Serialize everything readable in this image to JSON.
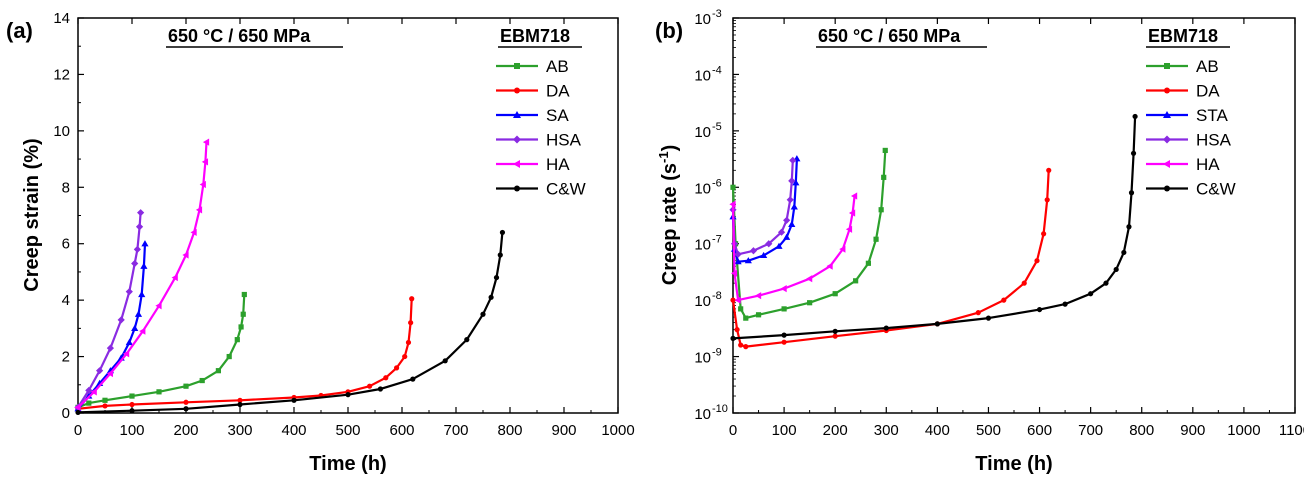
{
  "chart_data": [
    {
      "type": "line",
      "panel_label": "(a)",
      "condition": "650 °C / 650 MPa",
      "legend_title": "EBM718",
      "xlabel": "Time (h)",
      "ylabel": "Creep strain (%)",
      "xlim": [
        0,
        1000
      ],
      "ylim": [
        0,
        14
      ],
      "yscale": "linear",
      "xticks": [
        "0",
        "100",
        "200",
        "300",
        "400",
        "500",
        "600",
        "700",
        "800",
        "900",
        "1000"
      ],
      "yticks": [
        "0",
        "2",
        "4",
        "6",
        "8",
        "10",
        "12",
        "14"
      ],
      "series": [
        {
          "name": "AB",
          "color": "#2ca02c",
          "marker": "square",
          "x": [
            0,
            20,
            50,
            100,
            150,
            200,
            230,
            260,
            280,
            295,
            302,
            306,
            308
          ],
          "y": [
            0.2,
            0.35,
            0.45,
            0.6,
            0.75,
            0.95,
            1.15,
            1.5,
            2.0,
            2.6,
            3.05,
            3.5,
            4.2
          ]
        },
        {
          "name": "DA",
          "color": "#ff0000",
          "marker": "circle",
          "x": [
            0,
            50,
            100,
            200,
            300,
            400,
            450,
            500,
            540,
            570,
            590,
            605,
            612,
            616,
            618
          ],
          "y": [
            0.15,
            0.25,
            0.3,
            0.38,
            0.45,
            0.55,
            0.62,
            0.75,
            0.95,
            1.25,
            1.6,
            2.0,
            2.5,
            3.2,
            4.05
          ]
        },
        {
          "name": "SA",
          "color": "#0000ff",
          "marker": "triangle-up",
          "x": [
            0,
            20,
            40,
            60,
            80,
            95,
            105,
            112,
            118,
            122,
            124
          ],
          "y": [
            0.15,
            0.6,
            1.05,
            1.5,
            1.95,
            2.5,
            3.0,
            3.5,
            4.2,
            5.2,
            6.0
          ]
        },
        {
          "name": "HSA",
          "color": "#8a2be2",
          "marker": "diamond",
          "x": [
            0,
            20,
            40,
            60,
            80,
            95,
            105,
            110,
            114,
            116
          ],
          "y": [
            0.2,
            0.8,
            1.5,
            2.3,
            3.3,
            4.3,
            5.3,
            5.8,
            6.6,
            7.1
          ]
        },
        {
          "name": "HA",
          "color": "#ff00ff",
          "marker": "triangle-left",
          "x": [
            0,
            30,
            60,
            90,
            120,
            150,
            180,
            200,
            215,
            225,
            232,
            236,
            238
          ],
          "y": [
            0.2,
            0.75,
            1.4,
            2.1,
            2.9,
            3.8,
            4.8,
            5.6,
            6.4,
            7.2,
            8.1,
            8.9,
            9.6
          ]
        },
        {
          "name": "C&W",
          "color": "#000000",
          "marker": "circle",
          "x": [
            0,
            100,
            200,
            300,
            400,
            500,
            560,
            620,
            680,
            720,
            750,
            765,
            775,
            782,
            786
          ],
          "y": [
            0.02,
            0.08,
            0.15,
            0.3,
            0.45,
            0.65,
            0.85,
            1.2,
            1.85,
            2.6,
            3.5,
            4.1,
            4.8,
            5.6,
            6.4
          ]
        }
      ]
    },
    {
      "type": "line",
      "panel_label": "(b)",
      "condition": "650 °C / 650 MPa",
      "legend_title": "EBM718",
      "xlabel": "Time (h)",
      "ylabel": "Creep rate (s",
      "ylabel_sup": "-1",
      "ylabel_end": ")",
      "xlim": [
        0,
        1100
      ],
      "ylim_exponent": [
        -10,
        -3
      ],
      "yscale": "log",
      "xticks": [
        "0",
        "100",
        "200",
        "300",
        "400",
        "500",
        "600",
        "700",
        "800",
        "900",
        "1000",
        "1100"
      ],
      "yticks_base": "10",
      "yticks_exp": [
        "-10",
        "-9",
        "-8",
        "-7",
        "-6",
        "-5",
        "-4",
        "-3"
      ],
      "series": [
        {
          "name": "AB",
          "color": "#2ca02c",
          "marker": "square",
          "x": [
            0,
            5,
            15,
            25,
            50,
            100,
            150,
            200,
            240,
            265,
            280,
            290,
            295,
            298
          ],
          "y": [
            1e-06,
            1e-07,
            7e-09,
            4.8e-09,
            5.5e-09,
            7e-09,
            9e-09,
            1.3e-08,
            2.2e-08,
            4.5e-08,
            1.2e-07,
            4e-07,
            1.5e-06,
            4.5e-06
          ]
        },
        {
          "name": "DA",
          "color": "#ff0000",
          "marker": "circle",
          "x": [
            0,
            8,
            15,
            25,
            100,
            200,
            300,
            400,
            480,
            530,
            570,
            595,
            608,
            615,
            618
          ],
          "y": [
            1e-08,
            3e-09,
            1.6e-09,
            1.5e-09,
            1.8e-09,
            2.3e-09,
            2.9e-09,
            3.8e-09,
            6e-09,
            1e-08,
            2e-08,
            5e-08,
            1.5e-07,
            6e-07,
            2e-06
          ]
        },
        {
          "name": "STA",
          "color": "#0000ff",
          "marker": "triangle-up",
          "x": [
            0,
            3,
            10,
            30,
            60,
            90,
            105,
            115,
            120,
            123,
            125
          ],
          "y": [
            3e-07,
            8e-08,
            4.8e-08,
            5e-08,
            6.2e-08,
            9e-08,
            1.3e-07,
            2.2e-07,
            4.5e-07,
            1.2e-06,
            3.2e-06
          ]
        },
        {
          "name": "HSA",
          "color": "#8a2be2",
          "marker": "diamond",
          "x": [
            0,
            3,
            10,
            40,
            70,
            95,
            105,
            112,
            115,
            117
          ],
          "y": [
            4e-07,
            1e-07,
            6.5e-08,
            7.5e-08,
            1e-07,
            1.6e-07,
            2.6e-07,
            6e-07,
            1.3e-06,
            3e-06
          ]
        },
        {
          "name": "HA",
          "color": "#ff00ff",
          "marker": "triangle-left",
          "x": [
            0,
            3,
            10,
            50,
            100,
            150,
            190,
            215,
            228,
            234,
            238
          ],
          "y": [
            5e-07,
            3e-08,
            1e-08,
            1.2e-08,
            1.6e-08,
            2.4e-08,
            4e-08,
            8e-08,
            1.8e-07,
            3.5e-07,
            7e-07
          ]
        },
        {
          "name": "C&W",
          "color": "#000000",
          "marker": "circle",
          "x": [
            0,
            100,
            200,
            300,
            400,
            500,
            600,
            650,
            700,
            730,
            750,
            765,
            775,
            780,
            784,
            787
          ],
          "y": [
            2.1e-09,
            2.4e-09,
            2.8e-09,
            3.2e-09,
            3.8e-09,
            4.8e-09,
            6.8e-09,
            8.5e-09,
            1.3e-08,
            2e-08,
            3.5e-08,
            7e-08,
            2e-07,
            8e-07,
            4e-06,
            1.8e-05
          ]
        }
      ]
    }
  ]
}
